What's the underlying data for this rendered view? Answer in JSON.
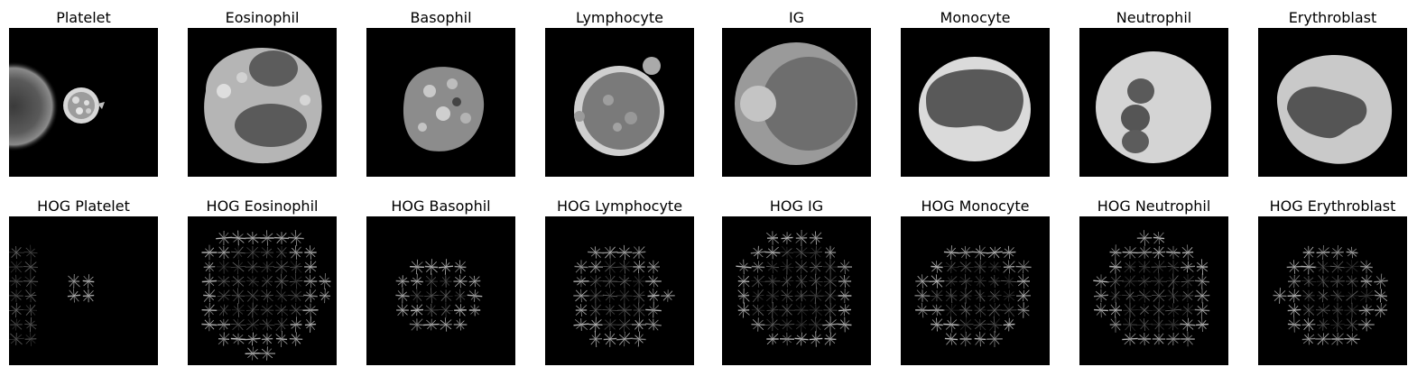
{
  "figure": {
    "rows": [
      {
        "kind": "cell",
        "panels": [
          {
            "title": "Platelet",
            "subject": "platelet-cell"
          },
          {
            "title": "Eosinophil",
            "subject": "eosinophil-cell"
          },
          {
            "title": "Basophil",
            "subject": "basophil-cell"
          },
          {
            "title": "Lymphocyte",
            "subject": "lymphocyte-cell"
          },
          {
            "title": "IG",
            "subject": "ig-cell"
          },
          {
            "title": "Monocyte",
            "subject": "monocyte-cell"
          },
          {
            "title": "Neutrophil",
            "subject": "neutrophil-cell"
          },
          {
            "title": "Erythroblast",
            "subject": "erythroblast-cell"
          }
        ]
      },
      {
        "kind": "hog",
        "panels": [
          {
            "title": "HOG Platelet",
            "subject": "hog-platelet"
          },
          {
            "title": "HOG Eosinophil",
            "subject": "hog-eosinophil"
          },
          {
            "title": "HOG Basophil",
            "subject": "hog-basophil"
          },
          {
            "title": "HOG Lymphocyte",
            "subject": "hog-lymphocyte"
          },
          {
            "title": "HOG IG",
            "subject": "hog-ig"
          },
          {
            "title": "HOG Monocyte",
            "subject": "hog-monocyte"
          },
          {
            "title": "HOG Neutrophil",
            "subject": "hog-neutrophil"
          },
          {
            "title": "HOG Erythroblast",
            "subject": "hog-erythroblast"
          }
        ]
      }
    ]
  }
}
